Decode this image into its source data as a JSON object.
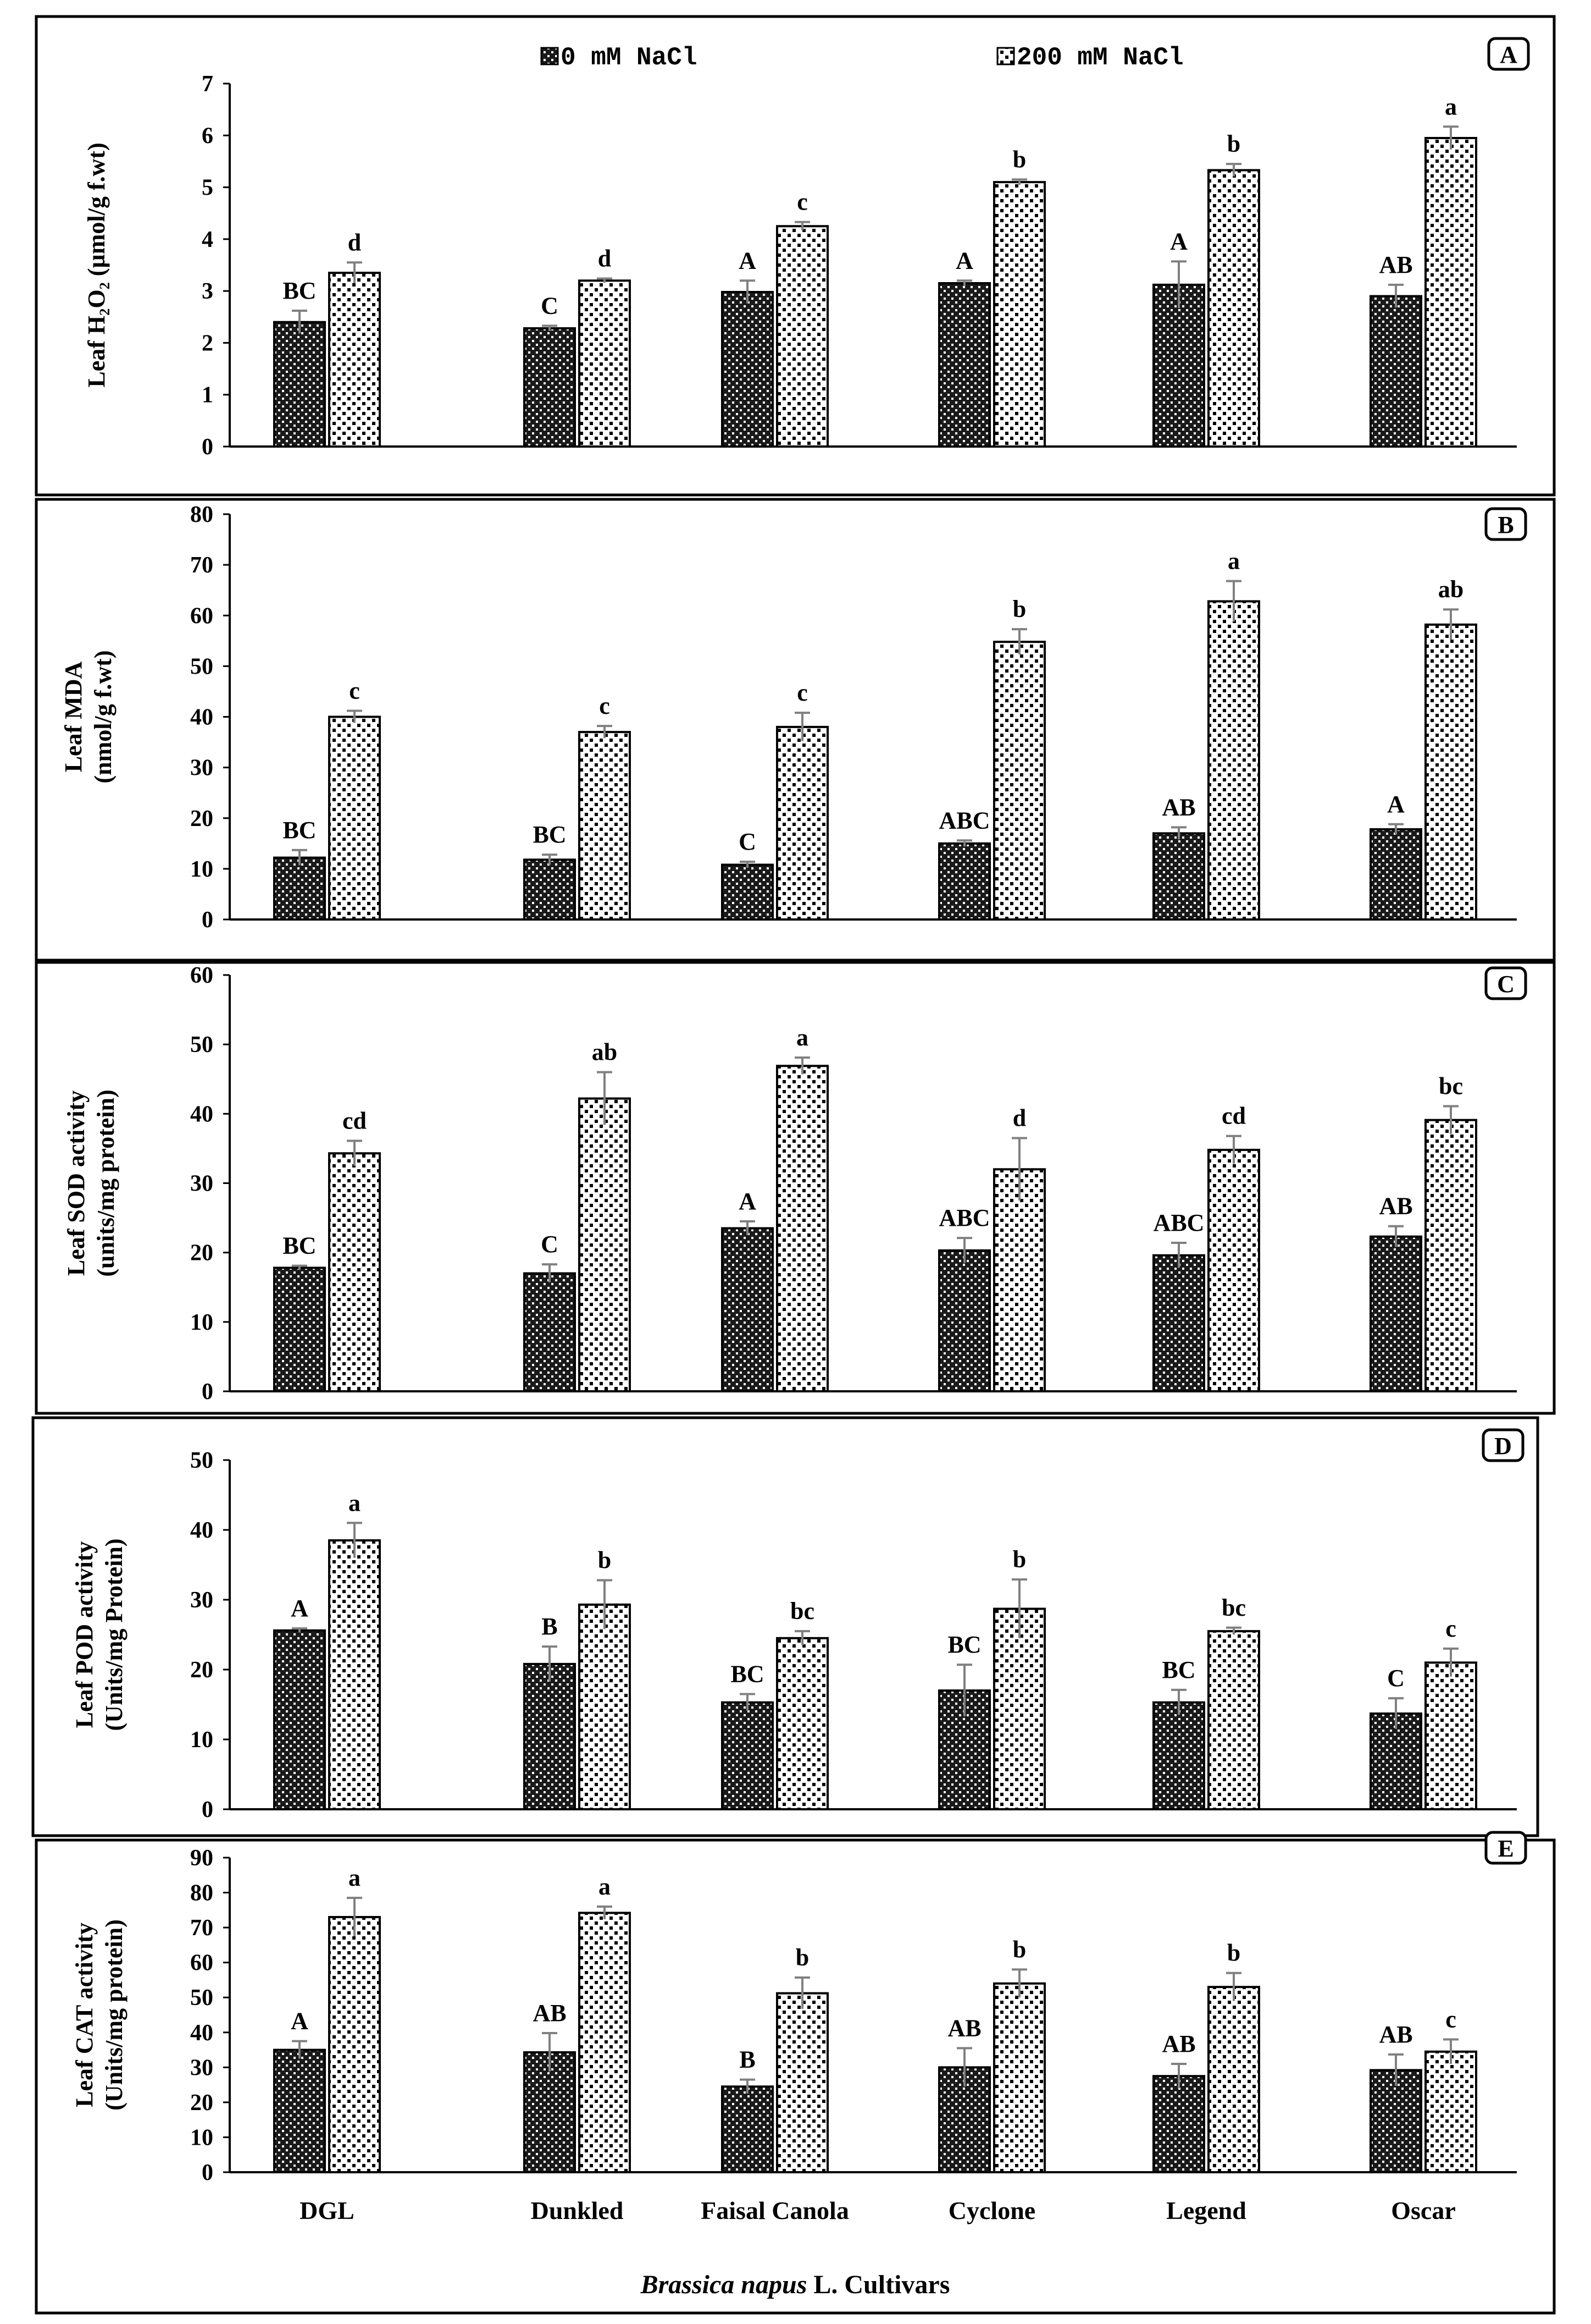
{
  "legend": [
    "0 mM NaCl",
    "200 mM NaCl"
  ],
  "x_title": {
    "italic": "Brassica napus",
    "rest": " L. Cultivars"
  },
  "categories": [
    "DGL",
    "Dunkled",
    "Faisal Canola",
    "Cyclone",
    "Legend",
    "Oscar"
  ],
  "colors": {
    "bar_control": "#1a1a1a",
    "bar_salt": "#ffffff",
    "axis": "#000000",
    "error": "#808080"
  },
  "chart_data": [
    {
      "type": "bar",
      "panel": "A",
      "ylabel": [
        "Leaf H₂O₂ (µmol/g f.wt)"
      ],
      "ylim": [
        0,
        7
      ],
      "yticks": [
        0,
        1,
        2,
        3,
        4,
        5,
        6,
        7
      ],
      "series": [
        {
          "name": "0 mM NaCl",
          "values": [
            2.4,
            2.28,
            2.98,
            3.15,
            3.12,
            2.9
          ],
          "errors": [
            0.22,
            0.05,
            0.22,
            0.05,
            0.45,
            0.22
          ],
          "letters": [
            "BC",
            "C",
            "A",
            "A",
            "A",
            "AB"
          ]
        },
        {
          "name": "200 mM NaCl",
          "values": [
            3.35,
            3.2,
            4.25,
            5.1,
            5.33,
            5.95
          ],
          "errors": [
            0.2,
            0.04,
            0.08,
            0.05,
            0.12,
            0.22
          ],
          "letters": [
            "d",
            "d",
            "c",
            "b",
            "b",
            "a"
          ]
        }
      ]
    },
    {
      "type": "bar",
      "panel": "B",
      "ylabel": [
        "Leaf MDA",
        "(nmol/g f.wt)"
      ],
      "ylim": [
        0,
        80
      ],
      "yticks": [
        0,
        10,
        20,
        30,
        40,
        50,
        60,
        70,
        80
      ],
      "series": [
        {
          "name": "0 mM NaCl",
          "values": [
            12.2,
            11.8,
            10.8,
            15.0,
            17.0,
            17.8
          ],
          "errors": [
            1.5,
            1.0,
            0.6,
            0.6,
            1.2,
            1.0
          ],
          "letters": [
            "BC",
            "BC",
            "C",
            "ABC",
            "AB",
            "A"
          ]
        },
        {
          "name": "200 mM NaCl",
          "values": [
            40.0,
            37.0,
            38.0,
            54.8,
            62.8,
            58.2
          ],
          "errors": [
            1.2,
            1.2,
            2.8,
            2.5,
            4.0,
            3.0
          ],
          "letters": [
            "c",
            "c",
            "c",
            "b",
            "a",
            "ab"
          ]
        }
      ]
    },
    {
      "type": "bar",
      "panel": "C",
      "ylabel": [
        "Leaf SOD activity",
        "(units/mg protein)"
      ],
      "ylim": [
        0,
        60
      ],
      "yticks": [
        0,
        10,
        20,
        30,
        40,
        50,
        60
      ],
      "series": [
        {
          "name": "0 mM NaCl",
          "values": [
            17.8,
            17.0,
            23.5,
            20.3,
            19.6,
            22.3
          ],
          "errors": [
            0.3,
            1.3,
            1.0,
            1.8,
            1.8,
            1.5
          ],
          "letters": [
            "BC",
            "C",
            "A",
            "ABC",
            "ABC",
            "AB"
          ]
        },
        {
          "name": "200 mM NaCl",
          "values": [
            34.3,
            42.2,
            46.9,
            32.0,
            34.8,
            39.1
          ],
          "errors": [
            1.8,
            3.8,
            1.2,
            4.5,
            2.0,
            2.0
          ],
          "letters": [
            "cd",
            "ab",
            "a",
            "d",
            "cd",
            "bc"
          ]
        }
      ]
    },
    {
      "type": "bar",
      "panel": "D",
      "ylabel": [
        "Leaf POD activity",
        "(Units/mg Protein)"
      ],
      "ylim": [
        0,
        50
      ],
      "yticks": [
        0,
        10,
        20,
        30,
        40,
        50
      ],
      "series": [
        {
          "name": "0 mM NaCl",
          "values": [
            25.6,
            20.8,
            15.3,
            17.0,
            15.3,
            13.7
          ],
          "errors": [
            0.3,
            2.5,
            1.2,
            3.7,
            1.8,
            2.2
          ],
          "letters": [
            "A",
            "B",
            "BC",
            "BC",
            "BC",
            "C"
          ]
        },
        {
          "name": "200 mM NaCl",
          "values": [
            38.5,
            29.3,
            24.5,
            28.7,
            25.5,
            21.0
          ],
          "errors": [
            2.5,
            3.5,
            1.0,
            4.2,
            0.5,
            2.0
          ],
          "letters": [
            "a",
            "b",
            "bc",
            "b",
            "bc",
            "c"
          ]
        }
      ]
    },
    {
      "type": "bar",
      "panel": "E",
      "ylabel": [
        "Leaf CAT activity",
        "(Units/mg protein)"
      ],
      "ylim": [
        0,
        90
      ],
      "yticks": [
        0,
        10,
        20,
        30,
        40,
        50,
        60,
        70,
        80,
        90
      ],
      "series": [
        {
          "name": "0 mM NaCl",
          "values": [
            35.0,
            34.3,
            24.5,
            30.0,
            27.5,
            29.2
          ],
          "errors": [
            2.5,
            5.5,
            2.0,
            5.5,
            3.5,
            4.5
          ],
          "letters": [
            "A",
            "AB",
            "B",
            "AB",
            "AB",
            "AB"
          ]
        },
        {
          "name": "200 mM NaCl",
          "values": [
            73.0,
            74.2,
            51.2,
            54.0,
            53.0,
            34.5
          ],
          "errors": [
            5.5,
            1.8,
            4.5,
            4.0,
            4.0,
            3.5
          ],
          "letters": [
            "a",
            "a",
            "b",
            "b",
            "b",
            "c"
          ]
        }
      ]
    }
  ]
}
